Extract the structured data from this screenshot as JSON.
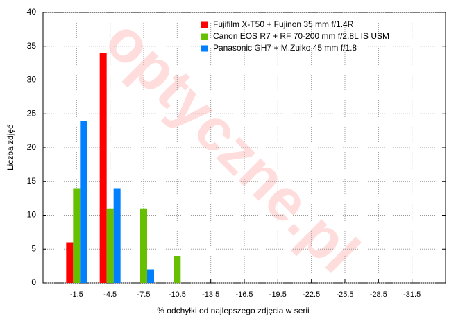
{
  "chart_data": {
    "type": "bar",
    "watermark": "optyczne.pl",
    "x_label": "% odchyłki od najlepszego zdjęcia w serii",
    "y_label": "Liczba zdjęć",
    "categories": [
      "-1.5",
      "-4.5",
      "-7.5",
      "-10.5",
      "-13.5",
      "-16.5",
      "-19.5",
      "-22.5",
      "-25.5",
      "-28.5",
      "-31.5"
    ],
    "series": [
      {
        "name": "Fujifilm X-T50 + Fujinon 35 mm f/1.4R",
        "color": "#ff0000",
        "values": [
          6,
          34,
          0,
          0,
          0,
          0,
          0,
          0,
          0,
          0,
          0
        ]
      },
      {
        "name": "Canon EOS R7 + RF 70-200 mm f/2.8L IS USM",
        "color": "#66c000",
        "values": [
          14,
          11,
          11,
          4,
          0,
          0,
          0,
          0,
          0,
          0,
          0
        ]
      },
      {
        "name": "Panasonic GH7 + M.Zuiko 45 mm f/1.8",
        "color": "#0080ff",
        "values": [
          24,
          14,
          2,
          0,
          0,
          0,
          0,
          0,
          0,
          0,
          0
        ]
      }
    ],
    "ylim": [
      0,
      40
    ],
    "yticks": [
      0,
      5,
      10,
      15,
      20,
      25,
      30,
      35,
      40
    ],
    "grid": true,
    "legend": "top-right"
  }
}
